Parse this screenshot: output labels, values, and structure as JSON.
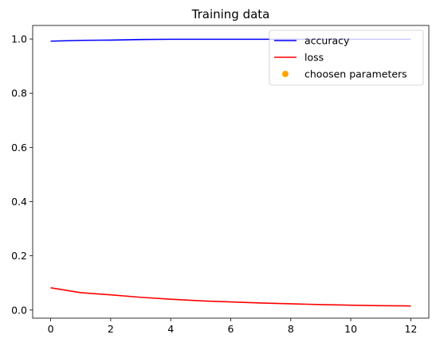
{
  "chart_data": {
    "type": "line",
    "title": "Training data",
    "xlabel": "",
    "ylabel": "",
    "xlim": [
      -0.6,
      12.6
    ],
    "ylim": [
      -0.03,
      1.05
    ],
    "x_ticks": [
      0,
      2,
      4,
      6,
      8,
      10,
      12
    ],
    "x_tick_labels": [
      "0",
      "2",
      "4",
      "6",
      "8",
      "10",
      "12"
    ],
    "y_ticks": [
      0.0,
      0.2,
      0.4,
      0.6,
      0.8,
      1.0
    ],
    "y_tick_labels": [
      "0.0",
      "0.2",
      "0.4",
      "0.6",
      "0.8",
      "1.0"
    ],
    "grid": false,
    "legend_position": "top-right",
    "x": [
      0,
      1,
      2,
      3,
      4,
      5,
      6,
      7,
      8,
      9,
      10,
      11,
      12
    ],
    "series": [
      {
        "name": "accuracy",
        "color": "#0000ff",
        "values": [
          0.992,
          0.995,
          0.996,
          0.998,
          0.999,
          0.999,
          0.999,
          0.999,
          0.999,
          0.999,
          0.999,
          0.999,
          0.999
        ]
      },
      {
        "name": "loss",
        "color": "#ff0000",
        "values": [
          0.082,
          0.064,
          0.056,
          0.047,
          0.04,
          0.034,
          0.03,
          0.026,
          0.023,
          0.02,
          0.018,
          0.016,
          0.015
        ]
      }
    ],
    "markers": [
      {
        "name": "choosen parameters",
        "color": "#ffa500",
        "points": []
      }
    ]
  }
}
